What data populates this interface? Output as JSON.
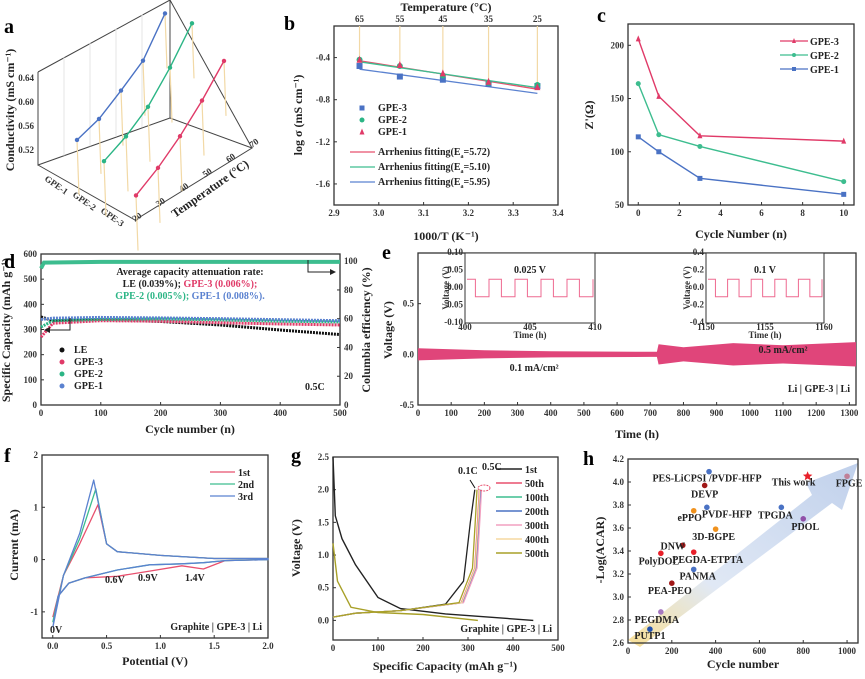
{
  "chart_data": [
    {
      "panel": "a",
      "type": "line",
      "projection": "3d",
      "zlabel": "Conductivity (mS cm⁻¹)",
      "xlabel": "Temperature (°C)",
      "categories_label": [
        "GPE-1",
        "GPE-2",
        "GPE-3"
      ],
      "z_ticks": [
        "0.52",
        "0.56",
        "0.60",
        "0.64"
      ],
      "x_ticks": [
        "20",
        "30",
        "40",
        "50",
        "60",
        "70"
      ],
      "x": [
        25,
        35,
        45,
        55,
        65
      ],
      "series": [
        {
          "name": "GPE-1",
          "color": "#4a72c4",
          "values": [
            0.524,
            0.54,
            0.572,
            0.6,
            0.66
          ]
        },
        {
          "name": "GPE-2",
          "color": "#2bb585",
          "values": [
            0.515,
            0.545,
            0.58,
            0.63,
            0.68
          ]
        },
        {
          "name": "GPE-3",
          "color": "#e03a68",
          "values": [
            0.51,
            0.55,
            0.59,
            0.63,
            0.67
          ]
        }
      ]
    },
    {
      "panel": "b",
      "type": "scatter",
      "xlabel": "1000/T (K⁻¹)",
      "ylabel": "log σ (mS cm⁻¹)",
      "top_xlabel": "Temperature (°C)",
      "top_ticks": [
        "65",
        "55",
        "45",
        "35",
        "25"
      ],
      "xlim": [
        2.9,
        3.4
      ],
      "ylim": [
        -1.8,
        -0.1
      ],
      "x_ticks": [
        "2.9",
        "3.0",
        "3.1",
        "3.2",
        "3.3",
        "3.4"
      ],
      "y_ticks": [
        "-0.4",
        "-0.8",
        "-1.2",
        "-1.6"
      ],
      "x": [
        2.957,
        3.047,
        3.143,
        3.245,
        3.354
      ],
      "series": [
        {
          "name": "GPE-3",
          "marker": "square",
          "color": "#4a72c4",
          "values": [
            -0.48,
            -0.58,
            -0.61,
            -0.65,
            -0.67
          ]
        },
        {
          "name": "GPE-2",
          "marker": "circle",
          "color": "#2bb585",
          "values": [
            -0.42,
            -0.48,
            -0.57,
            -0.64,
            -0.66
          ]
        },
        {
          "name": "GPE-1",
          "marker": "triangle",
          "color": "#e03a68",
          "values": [
            -0.42,
            -0.47,
            -0.55,
            -0.63,
            -0.68
          ]
        }
      ],
      "fits": [
        {
          "name": "Arrhenius fitting(E",
          "sub": "a",
          "suffix": "=5.72)",
          "color": "#e8506e",
          "y0": -0.43,
          "y1": -0.7
        },
        {
          "name": "Arrhenius fitting(E",
          "sub": "a",
          "suffix": "=5.10)",
          "color": "#3dbd8f",
          "y0": -0.44,
          "y1": -0.685
        },
        {
          "name": "Arrhenius fitting(E",
          "sub": "a",
          "suffix": "=5.95)",
          "color": "#5b82d0",
          "y0": -0.51,
          "y1": -0.74
        }
      ]
    },
    {
      "panel": "c",
      "type": "line",
      "xlabel": "Cycle Number (n)",
      "ylabel": "Z'(Ω)",
      "xlim": [
        -0.5,
        10.5
      ],
      "ylim": [
        50,
        220
      ],
      "x_ticks": [
        "0",
        "2",
        "4",
        "6",
        "8",
        "10"
      ],
      "y_ticks": [
        "50",
        "100",
        "150",
        "200"
      ],
      "x": [
        0,
        1,
        3,
        10
      ],
      "series": [
        {
          "name": "GPE-3",
          "marker": "triangle",
          "color": "#e03a68",
          "values": [
            206,
            152,
            115,
            110
          ]
        },
        {
          "name": "GPE-2",
          "marker": "circle",
          "color": "#3dbd8f",
          "values": [
            164,
            116,
            105,
            72
          ]
        },
        {
          "name": "GPE-1",
          "marker": "square",
          "color": "#4a72c4",
          "values": [
            114,
            100,
            75,
            60
          ]
        }
      ]
    },
    {
      "panel": "d",
      "type": "scatter",
      "xlabel": "Cycle number (n)",
      "ylabel": "Specific Capacity (mAh g⁻¹)",
      "y2label": "Columbia efficiency (%)",
      "xlim": [
        0,
        500
      ],
      "ylim": [
        0,
        600
      ],
      "y2lim": [
        0,
        105
      ],
      "x_ticks": [
        "0",
        "100",
        "200",
        "300",
        "400",
        "500"
      ],
      "y_ticks": [
        "0",
        "100",
        "200",
        "300",
        "400",
        "500",
        "600"
      ],
      "y2_ticks": [
        "0",
        "20",
        "40",
        "60",
        "80",
        "100"
      ],
      "annotation_title": "Average capacity attenuation rate:",
      "annotation_rates": [
        {
          "text": "LE (0.039%);",
          "color": "#222222"
        },
        {
          "text": "GPE-3 (0.006%);",
          "color": "#e03a68"
        },
        {
          "text": "GPE-2 (0.005%);",
          "color": "#2bb585"
        },
        {
          "text": "GPE-1 (0.008%).",
          "color": "#5b82d0"
        }
      ],
      "rate_label": "0.5C",
      "series": [
        {
          "name": "LE",
          "color": "#111111",
          "capacity": [
            [
              0,
              350
            ],
            [
              20,
              335
            ],
            [
              100,
              340
            ],
            [
              200,
              332
            ],
            [
              300,
              318
            ],
            [
              400,
              298
            ],
            [
              500,
              280
            ]
          ]
        },
        {
          "name": "GPE-3",
          "color": "#e03a68",
          "capacity": [
            [
              0,
              270
            ],
            [
              20,
              325
            ],
            [
              100,
              335
            ],
            [
              200,
              333
            ],
            [
              300,
              327
            ],
            [
              400,
              322
            ],
            [
              500,
              318
            ]
          ]
        },
        {
          "name": "GPE-2",
          "color": "#2bb585",
          "capacity": [
            [
              0,
              310
            ],
            [
              20,
              335
            ],
            [
              100,
              340
            ],
            [
              200,
              342
            ],
            [
              300,
              338
            ],
            [
              400,
              333
            ],
            [
              500,
              330
            ]
          ]
        },
        {
          "name": "GPE-1",
          "color": "#5b82d0",
          "capacity": [
            [
              0,
              340
            ],
            [
              20,
              345
            ],
            [
              100,
              348
            ],
            [
              200,
              346
            ],
            [
              300,
              343
            ],
            [
              400,
              339
            ],
            [
              500,
              335
            ]
          ]
        }
      ],
      "efficiency": [
        [
          0,
          95
        ],
        [
          5,
          99
        ],
        [
          100,
          99.5
        ],
        [
          500,
          99.5
        ]
      ]
    },
    {
      "panel": "e",
      "type": "area",
      "xlabel": "Time (h)",
      "ylabel": "Voltage (V)",
      "xlim": [
        0,
        1320
      ],
      "ylim": [
        -0.5,
        1.0
      ],
      "x_ticks": [
        "0",
        "100",
        "200",
        "300",
        "400",
        "500",
        "600",
        "700",
        "800",
        "900",
        "1000",
        "1100",
        "1200",
        "1300"
      ],
      "y_ticks": [
        "-0.5",
        "0.0",
        "0.5"
      ],
      "current_labels": [
        "0.1 mA/cm²",
        "0.5 mA/cm²"
      ],
      "cell_label": "Li | GPE-3 | Li",
      "envelope": [
        [
          0,
          0.06
        ],
        [
          200,
          0.04
        ],
        [
          400,
          0.03
        ],
        [
          700,
          0.025
        ],
        [
          720,
          0.025
        ],
        [
          725,
          0.1
        ],
        [
          800,
          0.07
        ],
        [
          950,
          0.11
        ],
        [
          1100,
          0.09
        ],
        [
          1320,
          0.12
        ]
      ],
      "insets": [
        {
          "title": "0.025 V",
          "xlabel": "Time (h)",
          "ylabel": "Voltage (V)",
          "x_ticks": [
            "400",
            "405",
            "410"
          ],
          "y_ticks": [
            "-0.10",
            "-0.05",
            "0.00",
            "0.05",
            "0.10"
          ],
          "amplitude": 0.025
        },
        {
          "title": "0.1 V",
          "xlabel": "Time (h)",
          "ylabel": "Voltage (V)",
          "x_ticks": [
            "1150",
            "1155",
            "1160"
          ],
          "y_ticks": [
            "-0.4",
            "-0.2",
            "0.0",
            "0.2",
            "0.4"
          ],
          "amplitude": 0.1
        }
      ]
    },
    {
      "panel": "f",
      "type": "line",
      "xlabel": "Potential (V)",
      "ylabel": "Current (mA)",
      "xlim": [
        -0.1,
        2.0
      ],
      "ylim": [
        -1.5,
        2.0
      ],
      "x_ticks": [
        "0.0",
        "0.5",
        "1.0",
        "1.5",
        "2.0"
      ],
      "y_ticks": [
        "-1",
        "0",
        "1",
        "2"
      ],
      "annotations": [
        "0V",
        "0.6V",
        "0.9V",
        "1.4V"
      ],
      "cell_label": "Graphite | GPE-3 | Li",
      "series": [
        {
          "name": "1st",
          "color": "#e8506e",
          "peak": 1.05
        },
        {
          "name": "2nd",
          "color": "#3dbd8f",
          "peak": 1.35
        },
        {
          "name": "3rd",
          "color": "#5b82d0",
          "peak": 1.52
        }
      ]
    },
    {
      "panel": "g",
      "type": "line",
      "xlabel": "Specific Capacity (mAh g⁻¹)",
      "ylabel": "Voltage (V)",
      "xlim": [
        0,
        500
      ],
      "ylim": [
        -0.3,
        2.5
      ],
      "x_ticks": [
        "0",
        "100",
        "200",
        "300",
        "400",
        "500"
      ],
      "y_ticks": [
        "0.0",
        "0.5",
        "1.0",
        "1.5",
        "2.0",
        "2.5"
      ],
      "annotations": [
        "0.1C",
        "0.5C"
      ],
      "cell_label": "Graphite | GPE-3 | Li",
      "series": [
        {
          "name": "1st",
          "color": "#222222",
          "charge_end": 315,
          "discharge_end": 445
        },
        {
          "name": "50th",
          "color": "#e8506e",
          "charge_end": 325,
          "discharge_end": 330
        },
        {
          "name": "100th",
          "color": "#3dbd8f",
          "charge_end": 327,
          "discharge_end": 330
        },
        {
          "name": "200th",
          "color": "#4a72c4",
          "charge_end": 328,
          "discharge_end": 332
        },
        {
          "name": "300th",
          "color": "#f2a0c0",
          "charge_end": 330,
          "discharge_end": 335
        },
        {
          "name": "400th",
          "color": "#f5d9a0",
          "charge_end": 326,
          "discharge_end": 330
        },
        {
          "name": "500th",
          "color": "#a8a028",
          "charge_end": 320,
          "discharge_end": 322
        }
      ]
    },
    {
      "panel": "h",
      "type": "scatter",
      "xlabel": "Cycle number",
      "ylabel": "-Log(ACAR)",
      "xlim": [
        0,
        1050
      ],
      "ylim": [
        2.6,
        4.2
      ],
      "x_ticks": [
        "0",
        "200",
        "400",
        "600",
        "800",
        "1000"
      ],
      "y_ticks": [
        "2.6",
        "2.8",
        "3.0",
        "3.2",
        "3.4",
        "3.6",
        "3.8",
        "4.0",
        "4.2"
      ],
      "points": [
        {
          "label": "PES-LiCPSI /PVDF-HFP",
          "x": 370,
          "y": 4.09,
          "color": "#4a72c4"
        },
        {
          "label": "DEVP",
          "x": 350,
          "y": 3.97,
          "color": "#a01818"
        },
        {
          "label": "PVDF-HFP",
          "x": 360,
          "y": 3.78,
          "color": "#4a72c4"
        },
        {
          "label": "ePPO",
          "x": 300,
          "y": 3.75,
          "color": "#f0921e"
        },
        {
          "label": "3D-BGPE",
          "x": 400,
          "y": 3.59,
          "color": "#f0921e"
        },
        {
          "label": "DNW",
          "x": 250,
          "y": 3.45,
          "color": "#a01818"
        },
        {
          "label": "PolyDOL",
          "x": 150,
          "y": 3.38,
          "color": "#e8202a"
        },
        {
          "label": "PEGDA-ETPTA",
          "x": 300,
          "y": 3.39,
          "color": "#e8202a"
        },
        {
          "label": "PANMA",
          "x": 300,
          "y": 3.24,
          "color": "#4a72c4"
        },
        {
          "label": "PEA-PEO",
          "x": 200,
          "y": 3.12,
          "color": "#a01818"
        },
        {
          "label": "PEGDMA",
          "x": 150,
          "y": 2.87,
          "color": "#a678c0"
        },
        {
          "label": "PUTP1",
          "x": 100,
          "y": 2.72,
          "color": "#2050b0"
        },
        {
          "label": "TPGDA",
          "x": 700,
          "y": 3.78,
          "color": "#4a72c4"
        },
        {
          "label": "PDOL",
          "x": 800,
          "y": 3.68,
          "color": "#9050a8"
        },
        {
          "label": "This work",
          "x": 820,
          "y": 4.05,
          "color": "#e8202a",
          "marker": "star"
        },
        {
          "label": "FPGE",
          "x": 1000,
          "y": 4.05,
          "color": "#c08098"
        }
      ]
    }
  ]
}
